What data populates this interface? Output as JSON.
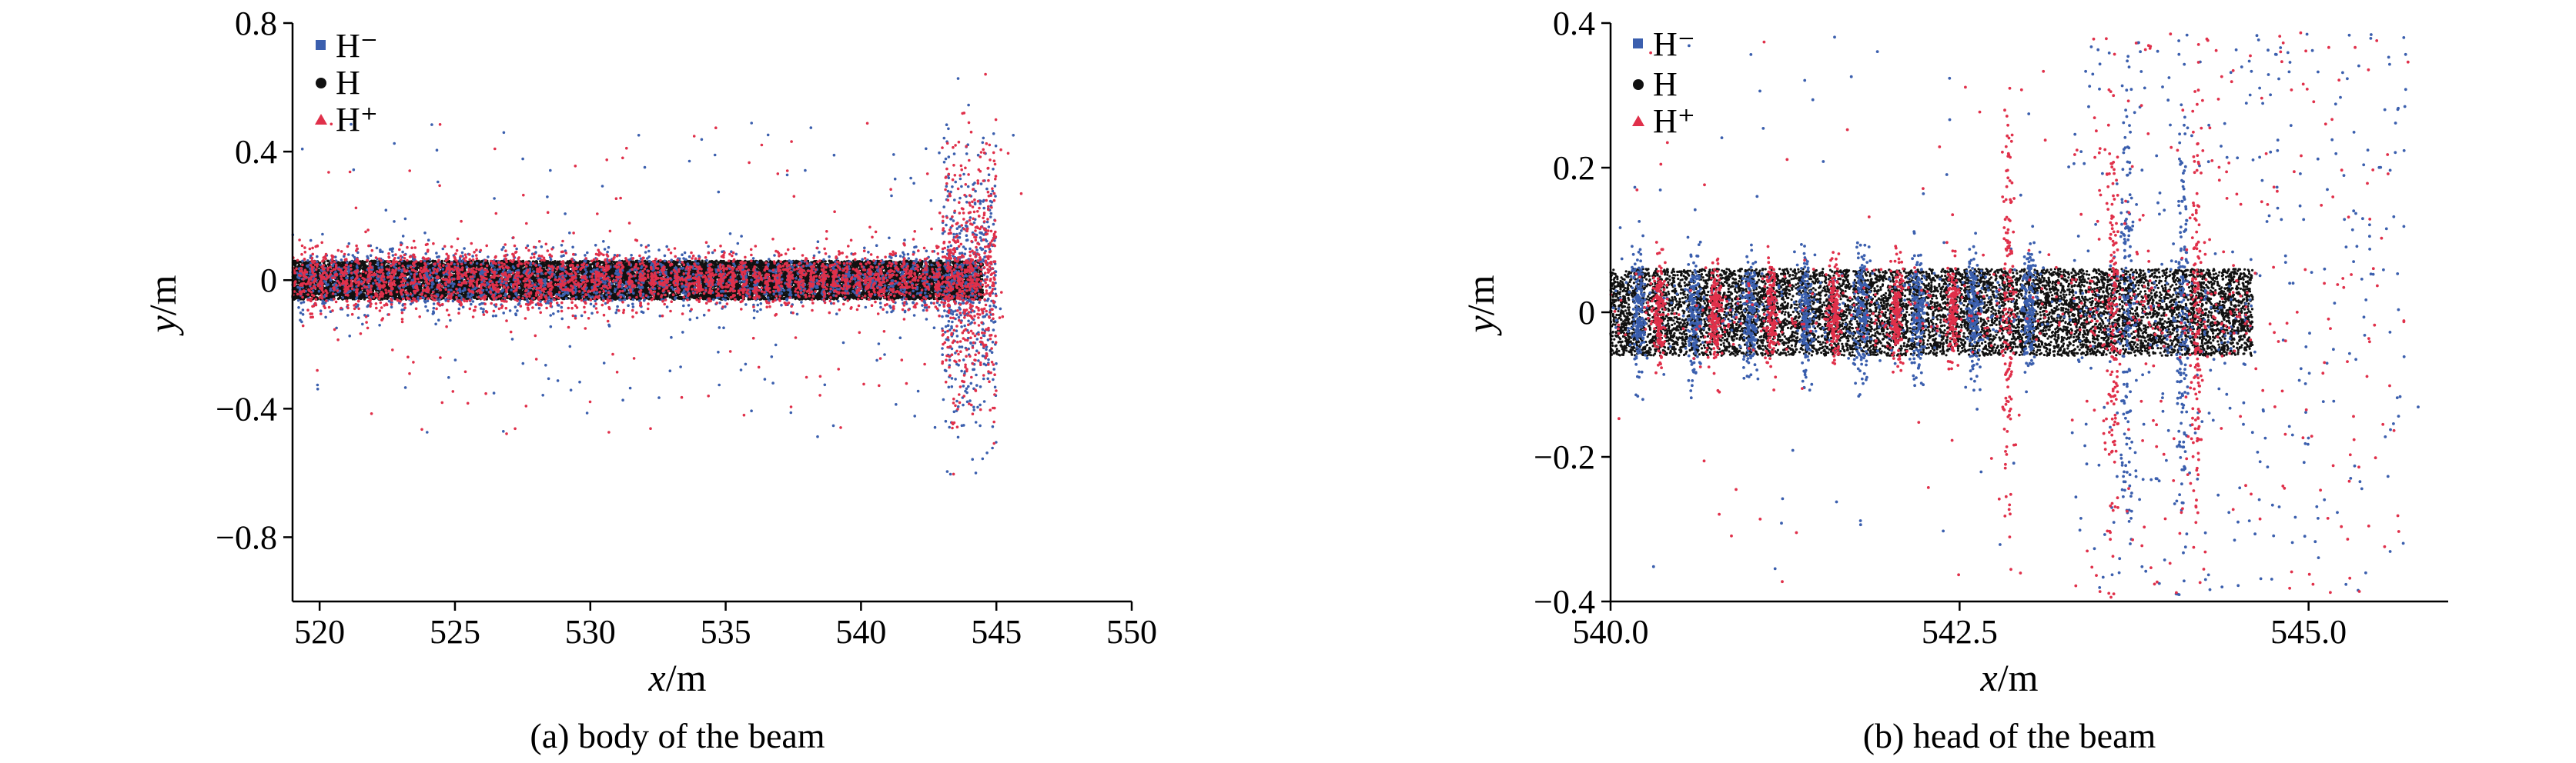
{
  "figure": {
    "captions": [
      "(a) body of the beam",
      "(b) head of the beam"
    ]
  },
  "colors": {
    "H_minus": "#3b5fae",
    "H": "#111111",
    "H_plus": "#e0304a"
  },
  "chart_data": [
    {
      "type": "scatter",
      "caption": "(a) body of the beam",
      "xlabel": "x/m",
      "ylabel": "y/m",
      "xlim": [
        519,
        550
      ],
      "ylim": [
        -1.0,
        0.8
      ],
      "xticks": [
        520,
        525,
        530,
        535,
        540,
        545,
        550
      ],
      "xtick_labels": [
        "520",
        "525",
        "530",
        "535",
        "540",
        "545",
        "550"
      ],
      "yticks": [
        -0.8,
        -0.4,
        0,
        0.4,
        0.8
      ],
      "ytick_labels": [
        "−0.8",
        "−0.4",
        "0",
        "0.4",
        "0.8"
      ],
      "grid": false,
      "legend_position": "top-left",
      "series": [
        {
          "name": "H⁻",
          "marker": "square",
          "color": "#3b5fae",
          "description": "dense particle band |y| < 0.12 from x = 519 to 545, with vertical spikes; sparse outliers up to |y| ≈ 0.6 near x = 544.5",
          "x_range": [
            519,
            545.5
          ],
          "y_range": [
            -0.65,
            0.55
          ]
        },
        {
          "name": "H",
          "marker": "circle",
          "color": "#111111",
          "description": "uniform dense band |y| ≤ 0.06 from x = 519 to 544.5",
          "x_range": [
            519,
            544.5
          ],
          "y_range": [
            -0.06,
            0.06
          ]
        },
        {
          "name": "H⁺",
          "marker": "triangle",
          "color": "#e0304a",
          "description": "dense band |y| < 0.1 with vertical spikes, strongest near x = 543–544.5 reaching |y| ≈ 0.6",
          "x_range": [
            519,
            545
          ],
          "y_range": [
            -0.65,
            0.55
          ]
        }
      ]
    },
    {
      "type": "scatter",
      "caption": "(b) head of the beam",
      "xlabel": "x/m",
      "ylabel": "y/m",
      "xlim": [
        540,
        546
      ],
      "ylim": [
        -0.4,
        0.4
      ],
      "xticks": [
        540.0,
        542.5,
        545.0
      ],
      "xtick_labels": [
        "540.0",
        "542.5",
        "545.0"
      ],
      "yticks": [
        -0.4,
        -0.2,
        0,
        0.2,
        0.4
      ],
      "ytick_labels": [
        "−0.4",
        "−0.2",
        "0",
        "0.2",
        "0.4"
      ],
      "grid": false,
      "legend_position": "top-left",
      "series": [
        {
          "name": "H⁻",
          "marker": "square",
          "color": "#3b5fae",
          "description": "vertical clusters at x ≈ 540.2, 540.6, 541.0, 541.4, 541.8, 542.2, 542.6, 543.0, 543.6, 544.0 within |y| < 0.1, widening to |y| ≈ 0.4 for x > 543.5",
          "x_range": [
            540.0,
            545.8
          ],
          "y_range": [
            -0.4,
            0.4
          ]
        },
        {
          "name": "H",
          "marker": "circle",
          "color": "#111111",
          "description": "uniform dense band |y| ≤ 0.06 from x = 540.0 to 544.6",
          "x_range": [
            540.0,
            544.6
          ],
          "y_range": [
            -0.06,
            0.06
          ]
        },
        {
          "name": "H⁺",
          "marker": "triangle",
          "color": "#e0304a",
          "description": "vertical clusters interleaved with H⁻, larger spread near x = 542.8, 543.6 and 544.2 up to |y| ≈ 0.38",
          "x_range": [
            540.0,
            545.5
          ],
          "y_range": [
            -0.4,
            0.4
          ]
        }
      ]
    }
  ]
}
